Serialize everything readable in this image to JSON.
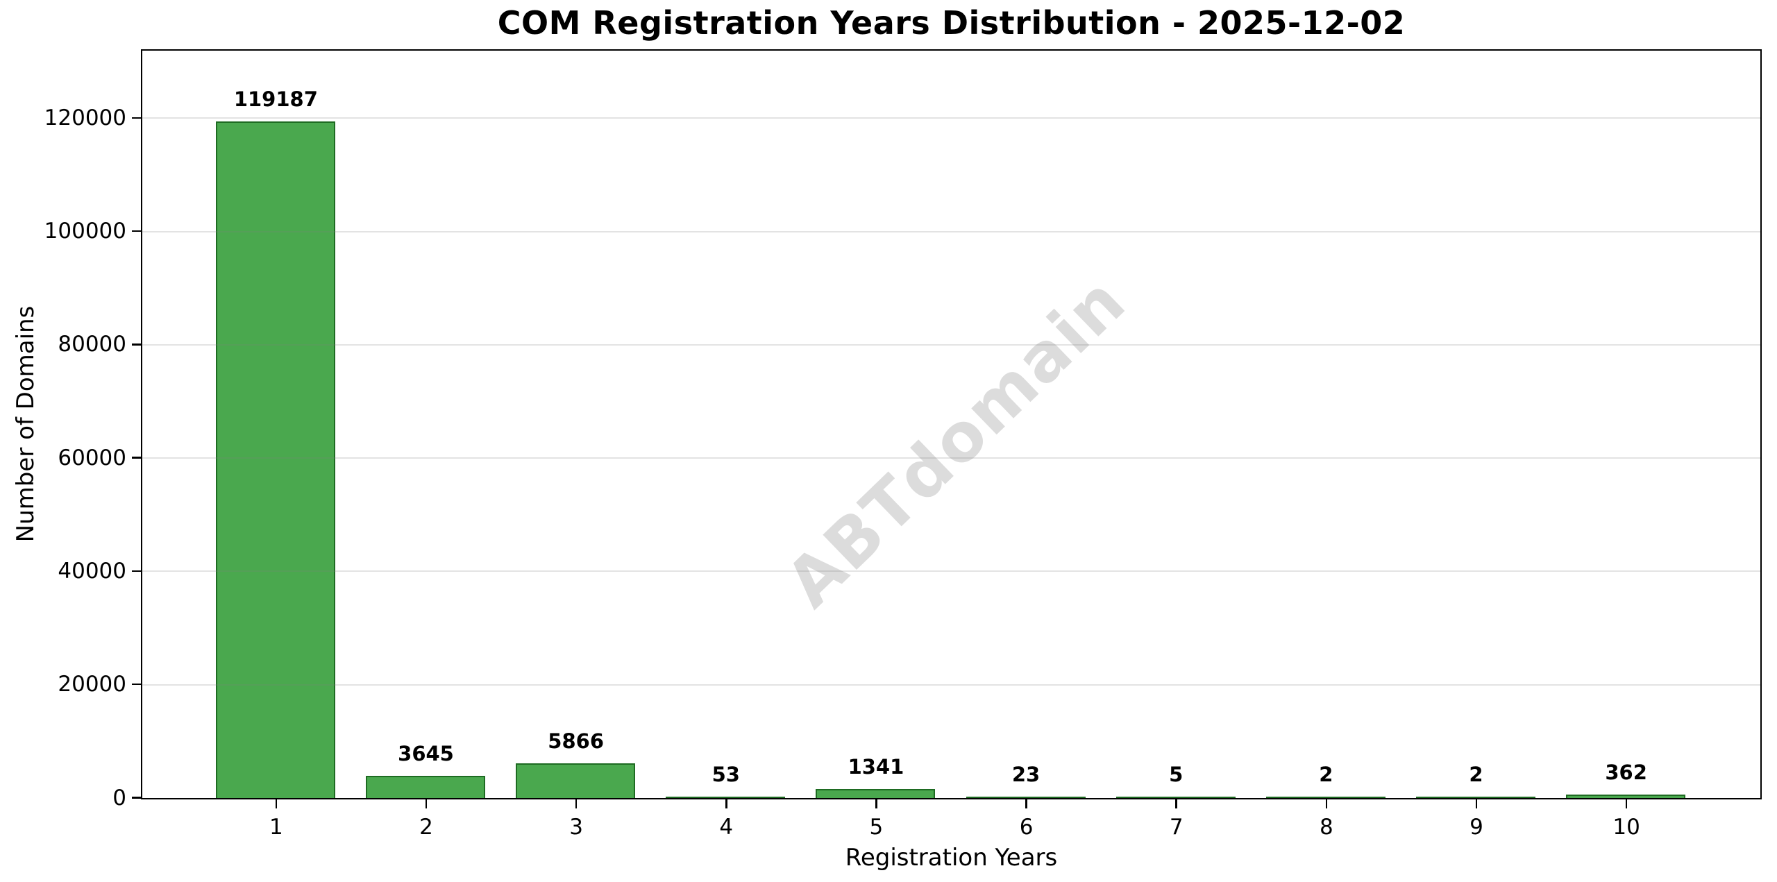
{
  "chart_data": {
    "type": "bar",
    "title": "COM Registration Years Distribution - 2025-12-02",
    "xlabel": "Registration Years",
    "ylabel": "Number of Domains",
    "categories": [
      "1",
      "2",
      "3",
      "4",
      "5",
      "6",
      "7",
      "8",
      "9",
      "10"
    ],
    "values": [
      119187,
      3645,
      5866,
      53,
      1341,
      23,
      5,
      2,
      2,
      362
    ],
    "value_labels": [
      "119187",
      "3645",
      "5866",
      "53",
      "1341",
      "23",
      "5",
      "2",
      "2",
      "362"
    ],
    "yticks": [
      0,
      20000,
      40000,
      60000,
      80000,
      100000,
      120000
    ],
    "ylim": [
      0,
      131800
    ],
    "xlim": [
      0.11,
      10.89
    ],
    "bar_width_units": 0.8,
    "grid": "horizontal",
    "legend": "none",
    "watermark": "ABTdomain",
    "colors": {
      "bar_fill": "#4aa84e",
      "bar_edge": "#1e6b22",
      "gridline": "#e0e0e0",
      "watermark": "#dcdcdc",
      "axis": "#000000",
      "background": "#ffffff"
    }
  }
}
